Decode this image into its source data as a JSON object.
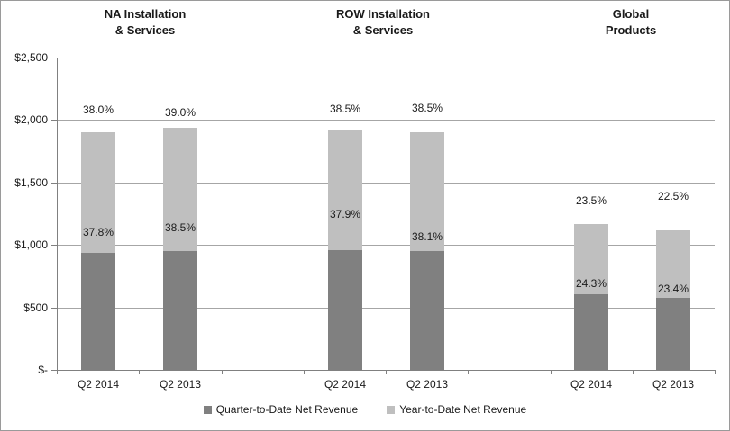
{
  "chart_data": {
    "type": "bar",
    "bar_mode": "overlay",
    "title": "",
    "group_titles": [
      "NA Installation\n& Services",
      "ROW Installation\n& Services",
      "Global\nProducts"
    ],
    "categories": [
      "Q2 2014",
      "Q2 2013",
      "Q2 2014",
      "Q2 2013",
      "Q2 2014",
      "Q2 2013"
    ],
    "series": [
      {
        "name": "Quarter-to-Date Net Revenue",
        "color": "#808080",
        "values": [
          940,
          950,
          955,
          950,
          605,
          575
        ],
        "data_labels": [
          "37.8%",
          "38.5%",
          "37.9%",
          "38.1%",
          "24.3%",
          "23.4%"
        ]
      },
      {
        "name": "Year-to-Date Net Revenue",
        "color": "#bfbfbf",
        "values": [
          1905,
          1935,
          1925,
          1905,
          1170,
          1115
        ],
        "data_labels": [
          "38.0%",
          "39.0%",
          "38.5%",
          "38.5%",
          "23.5%",
          "22.5%"
        ]
      }
    ],
    "xlabel": "",
    "ylabel": "",
    "ylim": [
      0,
      2500
    ],
    "ytick_values": [
      0,
      500,
      1000,
      1500,
      2000,
      2500
    ],
    "ytick_labels": [
      "$-",
      "$500",
      "$1,000",
      "$1,500",
      "$2,000",
      "$2,500"
    ],
    "grid": true,
    "legend_position": "bottom",
    "colors": {
      "grid": "#a6a6a6",
      "axis": "#808080",
      "text": "#1a1a1a",
      "background": "#ffffff"
    }
  }
}
